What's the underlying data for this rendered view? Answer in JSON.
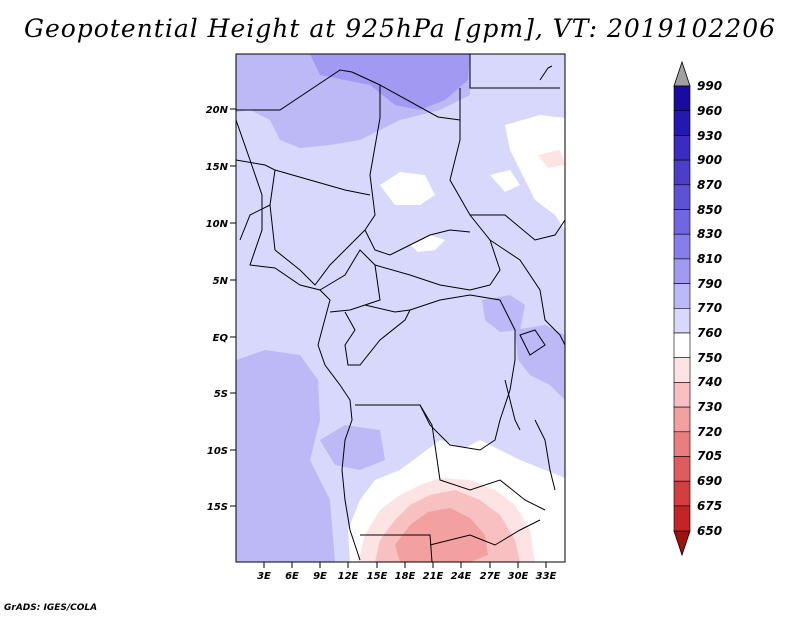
{
  "title": "Geopotential Height at 925hPa [gpm], VT: 2019102206",
  "footer": "GrADS: IGES/COLA",
  "map": {
    "lat_labels": [
      "20N",
      "15N",
      "10N",
      "5N",
      "EQ",
      "5S",
      "10S",
      "15S"
    ],
    "lon_labels": [
      "3E",
      "6E",
      "9E",
      "12E",
      "15E",
      "18E",
      "21E",
      "24E",
      "27E",
      "30E",
      "33E"
    ]
  },
  "colorbar": {
    "levels": [
      "990",
      "960",
      "930",
      "900",
      "870",
      "850",
      "830",
      "810",
      "790",
      "770",
      "760",
      "750",
      "740",
      "730",
      "720",
      "705",
      "690",
      "675",
      "650"
    ],
    "colors": [
      "#1a0aa0",
      "#2418b0",
      "#3a2cc0",
      "#4c3ecb",
      "#5d52d6",
      "#7066e0",
      "#867eea",
      "#a29af2",
      "#bdb8f6",
      "#d8d8fc",
      "#ffffff",
      "#fde3e3",
      "#f8c0c0",
      "#f2a0a0",
      "#ea7e7e",
      "#e05c5c",
      "#d43e3e",
      "#c42424",
      "#b01010"
    ],
    "top_arrow_color": "#a0a0a0",
    "bottom_arrow_color": "#a01010"
  },
  "field_colors": {
    "c790": "#d8d8fc",
    "c810": "#bdb8f6",
    "c830": "#a29af2",
    "c770": "#ffffff",
    "c760": "#fde3e3",
    "c750": "#f8c0c0",
    "c740": "#f2a0a0"
  }
}
